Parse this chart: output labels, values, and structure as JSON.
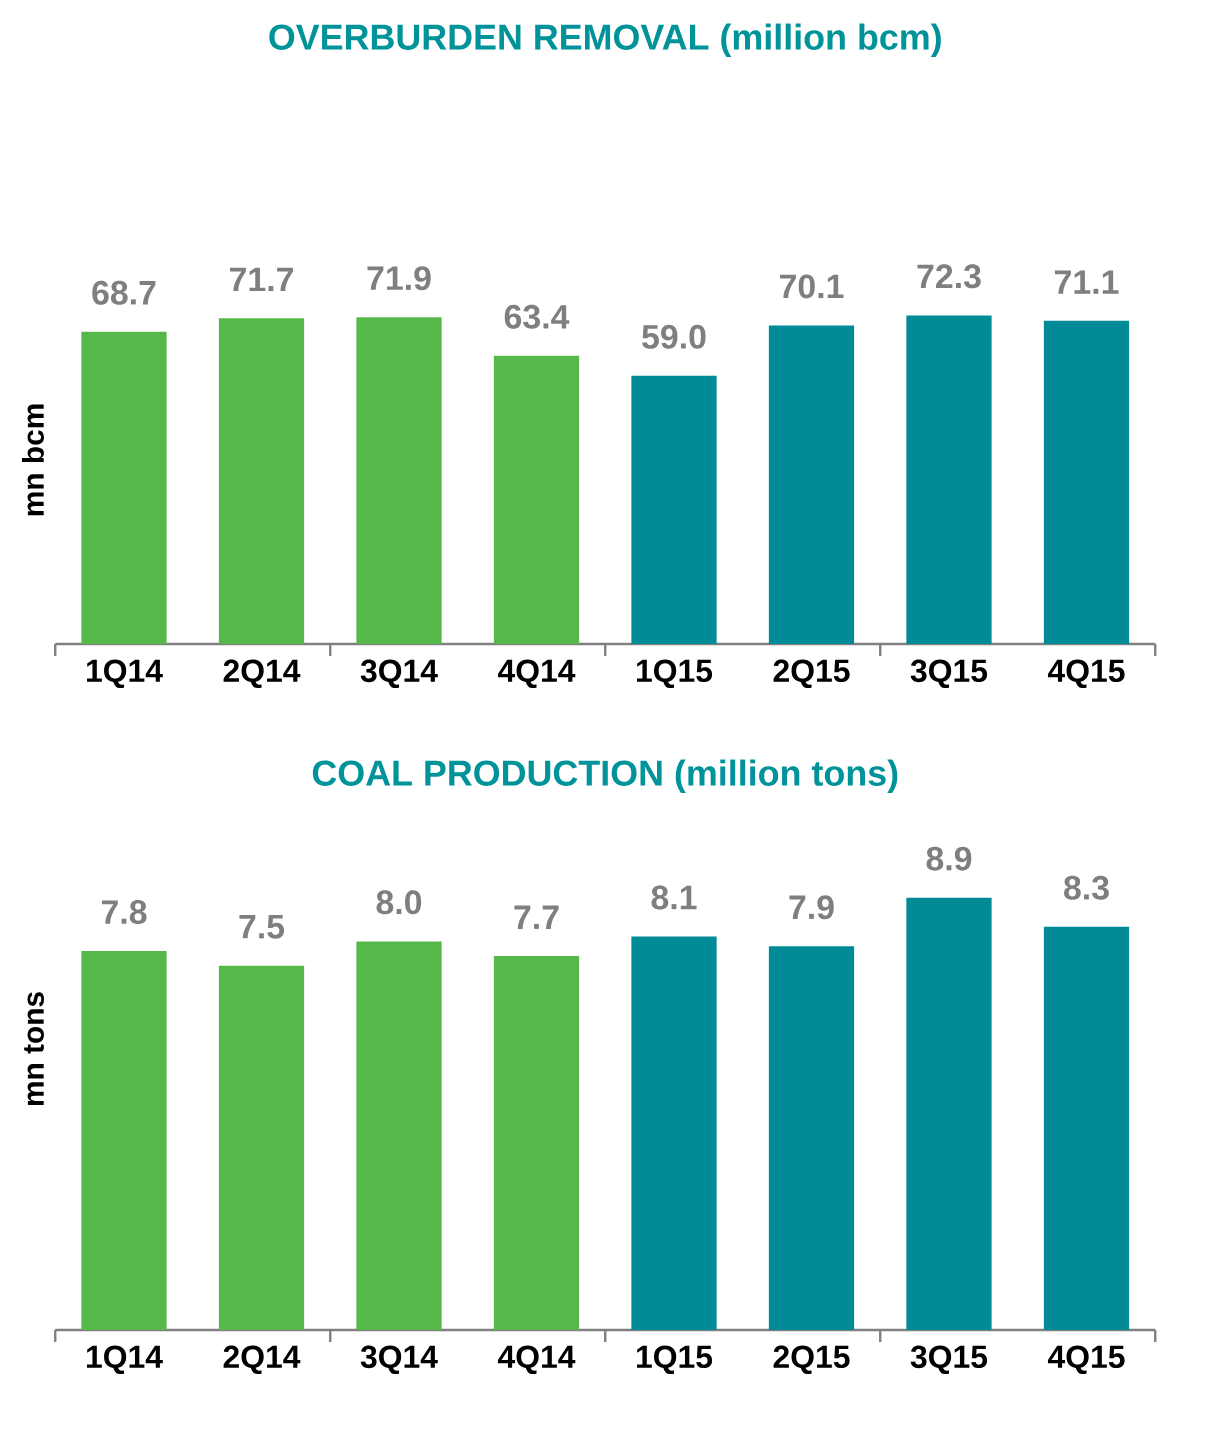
{
  "chart_data": [
    {
      "type": "bar",
      "title": "OVERBURDEN REMOVAL (million bcm)",
      "ylabel": "mn bcm",
      "categories": [
        "1Q14",
        "2Q14",
        "3Q14",
        "4Q14",
        "1Q15",
        "2Q15",
        "3Q15",
        "4Q15"
      ],
      "values": [
        68.7,
        71.7,
        71.9,
        63.4,
        59.0,
        70.1,
        72.3,
        71.1
      ],
      "value_labels": [
        "68.7",
        "71.7",
        "71.9",
        "63.4",
        "59.0",
        "70.1",
        "72.3",
        "71.1"
      ],
      "colors": [
        "#57b84a",
        "#57b84a",
        "#57b84a",
        "#57b84a",
        "#008b96",
        "#008b96",
        "#008b96",
        "#008b96"
      ],
      "tick_labels": "x"
    },
    {
      "type": "bar",
      "title": "COAL PRODUCTION (million tons)",
      "ylabel": "mn tons",
      "categories": [
        "1Q14",
        "2Q14",
        "3Q14",
        "4Q14",
        "1Q15",
        "2Q15",
        "3Q15",
        "4Q15"
      ],
      "values": [
        7.8,
        7.5,
        8.0,
        7.7,
        8.1,
        7.9,
        8.9,
        8.3
      ],
      "value_labels": [
        "7.8",
        "7.5",
        "8.0",
        "7.7",
        "8.1",
        "7.9",
        "8.9",
        "8.3"
      ],
      "colors": [
        "#57b84a",
        "#57b84a",
        "#57b84a",
        "#57b84a",
        "#008b96",
        "#008b96",
        "#008b96",
        "#008b96"
      ],
      "tick_labels": "x"
    }
  ]
}
